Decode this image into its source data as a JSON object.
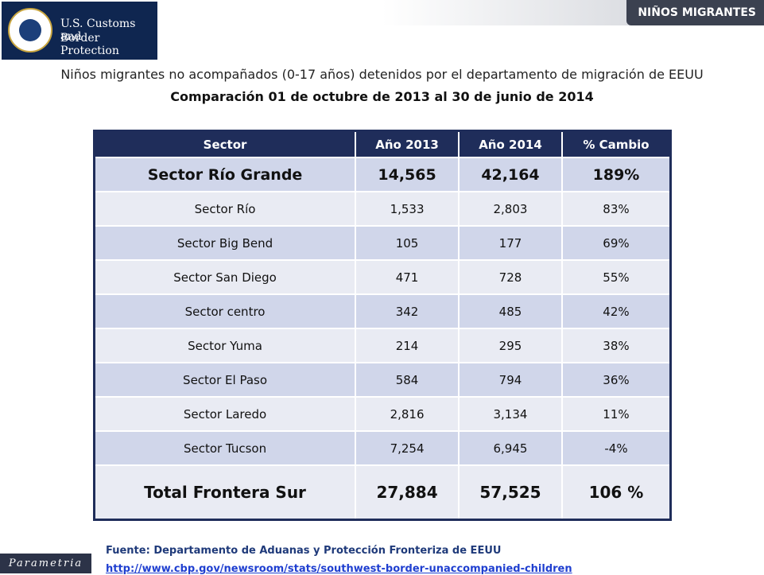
{
  "badge": "NIÑOS MIGRANTES",
  "logo": {
    "line1": "U.S. Customs and",
    "line2": "Border Protection"
  },
  "header": {
    "title": "Niños migrantes no acompañados (0-17 años) detenidos por el departamento de migración  de EEUU",
    "subtitle": "Comparación 01 de octubre de 2013 al 30 de junio de 2014"
  },
  "table": {
    "columns": [
      "Sector",
      "Año 2013",
      "Año 2014",
      "% Cambio"
    ],
    "rows": [
      [
        "Sector Río Grande",
        "14,565",
        "42,164",
        "189%"
      ],
      [
        "Sector Río",
        "1,533",
        "2,803",
        "83%"
      ],
      [
        "Sector Big Bend",
        "105",
        "177",
        "69%"
      ],
      [
        "Sector San Diego",
        "471",
        "728",
        "55%"
      ],
      [
        "Sector centro",
        "342",
        "485",
        "42%"
      ],
      [
        "Sector Yuma",
        "214",
        "295",
        "38%"
      ],
      [
        "Sector El Paso",
        "584",
        "794",
        "36%"
      ],
      [
        "Sector Laredo",
        "2,816",
        "3,134",
        "11%"
      ],
      [
        "Sector Tucson",
        "7,254",
        "6,945",
        "-4%"
      ],
      [
        "Total Frontera Sur",
        "27,884",
        "57,525",
        "106 %"
      ]
    ]
  },
  "source": {
    "text": "Fuente: Departamento de Aduanas y Protección Fronteriza de EEUU",
    "url": "http://www.cbp.gov/newsroom/stats/southwest-border-unaccompanied-children"
  },
  "brand": "Parametria"
}
